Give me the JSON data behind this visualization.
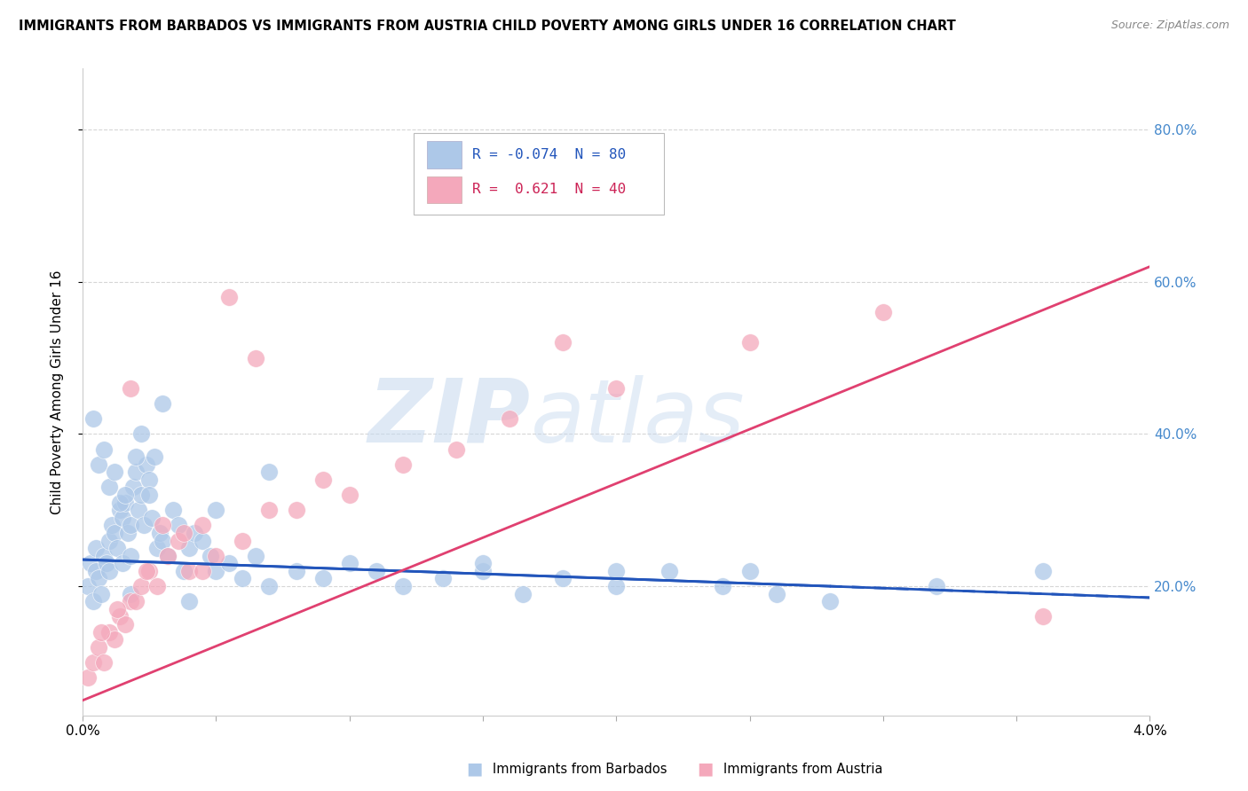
{
  "title": "IMMIGRANTS FROM BARBADOS VS IMMIGRANTS FROM AUSTRIA CHILD POVERTY AMONG GIRLS UNDER 16 CORRELATION CHART",
  "source": "Source: ZipAtlas.com",
  "ylabel": "Child Poverty Among Girls Under 16",
  "xlim": [
    0.0,
    4.0
  ],
  "ylim": [
    3.0,
    88.0
  ],
  "y_ticks": [
    20.0,
    40.0,
    60.0,
    80.0
  ],
  "y_tick_labels": [
    "20.0%",
    "40.0%",
    "60.0%",
    "80.0%"
  ],
  "barbados_color": "#adc8e8",
  "austria_color": "#f4a8bb",
  "barbados_line_color": "#2255bb",
  "austria_line_color": "#e04070",
  "legend_r_barbados": "R = -0.074",
  "legend_n_barbados": "N = 80",
  "legend_r_austria": "R =  0.621",
  "legend_n_austria": "N = 40",
  "watermark_zip": "ZIP",
  "watermark_atlas": "atlas",
  "barbados_x": [
    0.02,
    0.03,
    0.04,
    0.05,
    0.05,
    0.06,
    0.07,
    0.08,
    0.09,
    0.1,
    0.1,
    0.11,
    0.12,
    0.13,
    0.14,
    0.15,
    0.15,
    0.16,
    0.17,
    0.18,
    0.18,
    0.19,
    0.2,
    0.21,
    0.22,
    0.23,
    0.24,
    0.25,
    0.26,
    0.27,
    0.28,
    0.29,
    0.3,
    0.32,
    0.34,
    0.36,
    0.38,
    0.4,
    0.42,
    0.45,
    0.48,
    0.5,
    0.55,
    0.6,
    0.65,
    0.7,
    0.8,
    0.9,
    1.0,
    1.1,
    1.2,
    1.35,
    1.5,
    1.65,
    1.8,
    2.0,
    2.2,
    2.4,
    2.6,
    2.8,
    0.04,
    0.06,
    0.08,
    0.1,
    0.12,
    0.14,
    0.16,
    0.18,
    0.2,
    0.22,
    0.25,
    0.3,
    0.5,
    0.7,
    1.5,
    2.0,
    2.5,
    3.2,
    3.6,
    0.4
  ],
  "barbados_y": [
    20,
    23,
    18,
    22,
    25,
    21,
    19,
    24,
    23,
    26,
    22,
    28,
    27,
    25,
    30,
    29,
    23,
    31,
    27,
    28,
    24,
    33,
    35,
    30,
    32,
    28,
    36,
    34,
    29,
    37,
    25,
    27,
    26,
    24,
    30,
    28,
    22,
    25,
    27,
    26,
    24,
    22,
    23,
    21,
    24,
    20,
    22,
    21,
    23,
    22,
    20,
    21,
    22,
    19,
    21,
    20,
    22,
    20,
    19,
    18,
    42,
    36,
    38,
    33,
    35,
    31,
    32,
    19,
    37,
    40,
    32,
    44,
    30,
    35,
    23,
    22,
    22,
    20,
    22,
    18
  ],
  "austria_x": [
    0.02,
    0.04,
    0.06,
    0.08,
    0.1,
    0.12,
    0.14,
    0.16,
    0.18,
    0.2,
    0.22,
    0.25,
    0.28,
    0.32,
    0.36,
    0.4,
    0.45,
    0.5,
    0.6,
    0.7,
    0.8,
    0.9,
    1.0,
    1.2,
    1.4,
    1.6,
    1.8,
    2.0,
    2.5,
    3.0,
    0.07,
    0.13,
    0.18,
    0.24,
    0.3,
    0.38,
    0.45,
    0.55,
    0.65,
    3.6
  ],
  "austria_y": [
    8,
    10,
    12,
    10,
    14,
    13,
    16,
    15,
    18,
    18,
    20,
    22,
    20,
    24,
    26,
    22,
    28,
    24,
    26,
    30,
    30,
    34,
    32,
    36,
    38,
    42,
    52,
    46,
    52,
    56,
    14,
    17,
    46,
    22,
    28,
    27,
    22,
    58,
    50,
    16
  ],
  "barbados_trend_x": [
    0.0,
    4.0
  ],
  "barbados_trend_y": [
    23.5,
    18.5
  ],
  "austria_trend_x": [
    0.0,
    4.0
  ],
  "austria_trend_y": [
    5.0,
    62.0
  ]
}
